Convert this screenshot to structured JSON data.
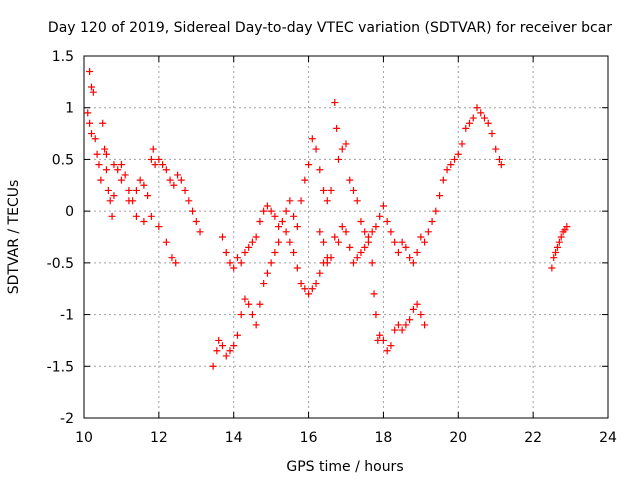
{
  "chart_data": {
    "type": "scatter",
    "title": "Day 120 of 2019, Sidereal Day-to-day VTEC variation (SDTVAR) for receiver bcar",
    "xlabel": "GPS time / hours",
    "ylabel": "SDTVAR / TECUs",
    "xlim": [
      10,
      24
    ],
    "ylim": [
      -2,
      1.5
    ],
    "xticks": [
      "10",
      "12",
      "14",
      "16",
      "18",
      "20",
      "22",
      "24"
    ],
    "yticks": [
      "1.5",
      "1",
      "0.5",
      "0",
      "-0.5",
      "-1",
      "-1.5",
      "-2"
    ],
    "grid": true,
    "marker": "+",
    "color": "#ff0000",
    "series": [
      {
        "name": "SDTVAR",
        "points": [
          [
            10.15,
            1.35
          ],
          [
            10.2,
            1.2
          ],
          [
            10.25,
            1.15
          ],
          [
            10.1,
            0.95
          ],
          [
            10.15,
            0.85
          ],
          [
            10.2,
            0.75
          ],
          [
            10.3,
            0.7
          ],
          [
            10.35,
            0.55
          ],
          [
            10.4,
            0.45
          ],
          [
            10.45,
            0.3
          ],
          [
            10.5,
            0.85
          ],
          [
            10.55,
            0.6
          ],
          [
            10.6,
            0.4
          ],
          [
            10.65,
            0.2
          ],
          [
            10.7,
            0.1
          ],
          [
            10.75,
            -0.05
          ],
          [
            10.8,
            0.15
          ],
          [
            10.9,
            0.4
          ],
          [
            11.0,
            0.45
          ],
          [
            11.1,
            0.35
          ],
          [
            11.2,
            0.2
          ],
          [
            11.3,
            0.1
          ],
          [
            11.4,
            0.2
          ],
          [
            11.5,
            0.3
          ],
          [
            11.6,
            0.25
          ],
          [
            11.7,
            0.15
          ],
          [
            11.8,
            0.5
          ],
          [
            11.85,
            0.6
          ],
          [
            11.9,
            0.45
          ],
          [
            12.0,
            0.5
          ],
          [
            12.1,
            0.45
          ],
          [
            12.2,
            0.4
          ],
          [
            12.3,
            0.3
          ],
          [
            12.4,
            0.25
          ],
          [
            12.5,
            0.35
          ],
          [
            12.6,
            0.3
          ],
          [
            12.7,
            0.2
          ],
          [
            12.8,
            0.1
          ],
          [
            12.9,
            0.0
          ],
          [
            13.0,
            -0.1
          ],
          [
            13.1,
            -0.2
          ],
          [
            10.6,
            0.55
          ],
          [
            10.8,
            0.45
          ],
          [
            11.0,
            0.3
          ],
          [
            11.2,
            0.1
          ],
          [
            11.4,
            -0.05
          ],
          [
            11.6,
            -0.1
          ],
          [
            11.8,
            -0.05
          ],
          [
            12.0,
            -0.15
          ],
          [
            12.2,
            -0.3
          ],
          [
            12.35,
            -0.45
          ],
          [
            12.45,
            -0.5
          ],
          [
            13.45,
            -1.5
          ],
          [
            13.55,
            -1.35
          ],
          [
            13.6,
            -1.25
          ],
          [
            13.7,
            -1.3
          ],
          [
            13.8,
            -1.4
          ],
          [
            13.9,
            -1.35
          ],
          [
            14.0,
            -1.3
          ],
          [
            14.1,
            -1.2
          ],
          [
            14.2,
            -1.0
          ],
          [
            14.3,
            -0.85
          ],
          [
            14.4,
            -0.9
          ],
          [
            14.5,
            -1.0
          ],
          [
            14.6,
            -1.1
          ],
          [
            14.7,
            -0.9
          ],
          [
            14.8,
            -0.7
          ],
          [
            14.9,
            -0.6
          ],
          [
            15.0,
            -0.5
          ],
          [
            15.1,
            -0.4
          ],
          [
            15.2,
            -0.3
          ],
          [
            13.7,
            -0.25
          ],
          [
            13.8,
            -0.4
          ],
          [
            13.9,
            -0.5
          ],
          [
            14.0,
            -0.55
          ],
          [
            14.1,
            -0.45
          ],
          [
            14.2,
            -0.5
          ],
          [
            14.3,
            -0.4
          ],
          [
            14.4,
            -0.35
          ],
          [
            14.5,
            -0.3
          ],
          [
            14.6,
            -0.25
          ],
          [
            14.7,
            -0.1
          ],
          [
            14.8,
            0.0
          ],
          [
            14.9,
            0.05
          ],
          [
            15.0,
            0.0
          ],
          [
            15.1,
            -0.05
          ],
          [
            15.2,
            -0.15
          ],
          [
            15.3,
            -0.1
          ],
          [
            15.4,
            -0.2
          ],
          [
            15.5,
            -0.3
          ],
          [
            15.6,
            -0.4
          ],
          [
            15.7,
            -0.55
          ],
          [
            15.8,
            -0.7
          ],
          [
            15.9,
            -0.75
          ],
          [
            16.0,
            -0.8
          ],
          [
            16.1,
            -0.75
          ],
          [
            16.2,
            -0.7
          ],
          [
            16.3,
            -0.6
          ],
          [
            16.4,
            -0.5
          ],
          [
            16.5,
            -0.45
          ],
          [
            15.4,
            0.0
          ],
          [
            15.5,
            0.1
          ],
          [
            15.6,
            -0.05
          ],
          [
            15.7,
            -0.15
          ],
          [
            15.8,
            0.1
          ],
          [
            15.9,
            0.3
          ],
          [
            16.0,
            0.45
          ],
          [
            16.1,
            0.7
          ],
          [
            16.2,
            0.6
          ],
          [
            16.3,
            0.4
          ],
          [
            16.4,
            0.2
          ],
          [
            16.5,
            0.1
          ],
          [
            16.6,
            0.2
          ],
          [
            16.7,
            1.05
          ],
          [
            16.75,
            0.8
          ],
          [
            16.8,
            0.5
          ],
          [
            16.9,
            0.6
          ],
          [
            17.0,
            0.65
          ],
          [
            17.1,
            0.3
          ],
          [
            17.2,
            0.2
          ],
          [
            17.3,
            0.1
          ],
          [
            17.4,
            -0.1
          ],
          [
            17.5,
            -0.2
          ],
          [
            17.6,
            -0.3
          ],
          [
            17.7,
            -0.5
          ],
          [
            17.75,
            -0.8
          ],
          [
            17.8,
            -1.0
          ],
          [
            17.85,
            -1.25
          ],
          [
            17.9,
            -1.2
          ],
          [
            18.0,
            -1.25
          ],
          [
            18.1,
            -1.35
          ],
          [
            18.2,
            -1.3
          ],
          [
            18.3,
            -1.15
          ],
          [
            18.4,
            -1.1
          ],
          [
            18.5,
            -1.15
          ],
          [
            18.6,
            -1.1
          ],
          [
            18.7,
            -1.05
          ],
          [
            18.8,
            -0.95
          ],
          [
            18.9,
            -0.9
          ],
          [
            19.0,
            -1.0
          ],
          [
            19.1,
            -1.1
          ],
          [
            16.3,
            -0.2
          ],
          [
            16.4,
            -0.3
          ],
          [
            16.5,
            -0.5
          ],
          [
            16.6,
            -0.45
          ],
          [
            16.7,
            -0.25
          ],
          [
            16.8,
            -0.3
          ],
          [
            16.9,
            -0.15
          ],
          [
            17.0,
            -0.2
          ],
          [
            17.1,
            -0.35
          ],
          [
            17.2,
            -0.5
          ],
          [
            17.3,
            -0.45
          ],
          [
            17.4,
            -0.4
          ],
          [
            17.5,
            -0.35
          ],
          [
            17.6,
            -0.25
          ],
          [
            17.7,
            -0.2
          ],
          [
            17.8,
            -0.15
          ],
          [
            17.9,
            -0.05
          ],
          [
            18.0,
            0.05
          ],
          [
            18.1,
            -0.1
          ],
          [
            18.2,
            -0.2
          ],
          [
            18.3,
            -0.3
          ],
          [
            18.4,
            -0.4
          ],
          [
            18.5,
            -0.3
          ],
          [
            18.6,
            -0.35
          ],
          [
            18.7,
            -0.45
          ],
          [
            18.8,
            -0.5
          ],
          [
            18.9,
            -0.4
          ],
          [
            19.0,
            -0.25
          ],
          [
            19.1,
            -0.3
          ],
          [
            19.2,
            -0.2
          ],
          [
            19.3,
            -0.1
          ],
          [
            19.4,
            0.0
          ],
          [
            19.5,
            0.15
          ],
          [
            19.6,
            0.3
          ],
          [
            19.7,
            0.4
          ],
          [
            19.8,
            0.45
          ],
          [
            19.9,
            0.5
          ],
          [
            20.0,
            0.55
          ],
          [
            20.1,
            0.65
          ],
          [
            20.2,
            0.8
          ],
          [
            20.3,
            0.85
          ],
          [
            20.4,
            0.9
          ],
          [
            20.5,
            1.0
          ],
          [
            20.6,
            0.95
          ],
          [
            20.7,
            0.9
          ],
          [
            20.8,
            0.85
          ],
          [
            20.9,
            0.75
          ],
          [
            21.0,
            0.6
          ],
          [
            21.1,
            0.5
          ],
          [
            21.15,
            0.45
          ],
          [
            22.5,
            -0.55
          ],
          [
            22.55,
            -0.45
          ],
          [
            22.6,
            -0.4
          ],
          [
            22.65,
            -0.35
          ],
          [
            22.7,
            -0.3
          ],
          [
            22.75,
            -0.25
          ],
          [
            22.8,
            -0.2
          ],
          [
            22.85,
            -0.18
          ],
          [
            22.9,
            -0.15
          ]
        ]
      }
    ]
  }
}
